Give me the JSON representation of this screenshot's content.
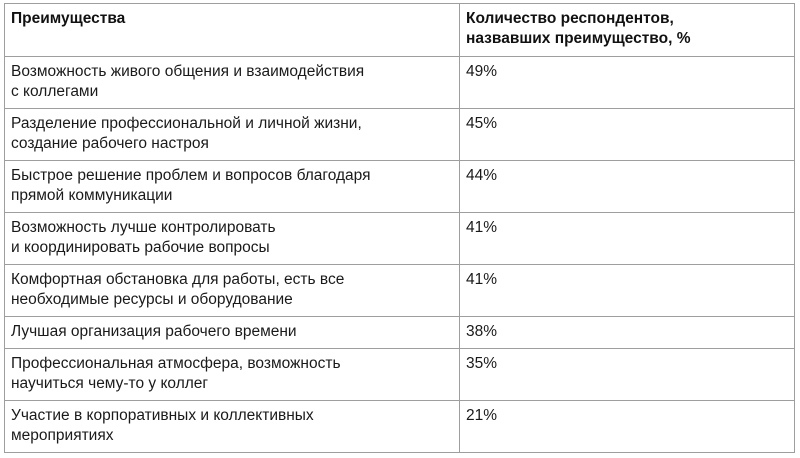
{
  "table": {
    "headers": {
      "col1": "Преимущества",
      "col2_line1": "Количество респондентов,",
      "col2_line2": "назвавших преимущество, %"
    },
    "rows": [
      {
        "line1": "Возможность живого общения и взаимодействия",
        "line2": "с коллегами",
        "value": "49%"
      },
      {
        "line1": "Разделение профессиональной и личной жизни,",
        "line2": "создание рабочего настроя",
        "value": "45%"
      },
      {
        "line1": "Быстрое решение проблем и вопросов благодаря",
        "line2": "прямой коммуникации",
        "value": "44%"
      },
      {
        "line1": "Возможность лучше контролировать",
        "line2": "и координировать рабочие вопросы",
        "value": "41%"
      },
      {
        "line1": "Комфортная обстановка для работы, есть все",
        "line2": "необходимые ресурсы и оборудование",
        "value": "41%"
      },
      {
        "line1": "Лучшая организация рабочего времени",
        "value": "38%"
      },
      {
        "line1": "Профессиональная атмосфера, возможность",
        "line2": "научиться чему-то у коллег",
        "value": "35%"
      },
      {
        "line1": "Участие в корпоративных и коллективных",
        "line2": "мероприятиях",
        "value": "21%"
      }
    ]
  }
}
